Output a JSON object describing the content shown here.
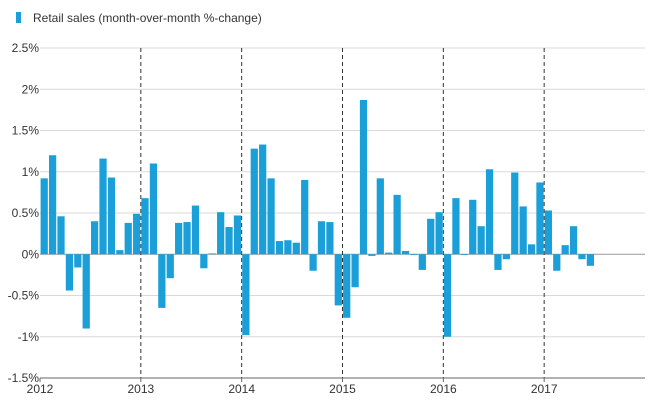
{
  "chart_data": {
    "type": "bar",
    "title": "",
    "xlabel": "",
    "ylabel": "",
    "legend": {
      "label": "Retail sales (month-over-month %-change)",
      "placement": "top-left"
    },
    "series": [
      {
        "name": "Retail sales (month-over-month %-change)",
        "color": "#1a9fd8",
        "start": "2012-01",
        "values": [
          0.92,
          1.2,
          0.46,
          -0.44,
          -0.16,
          -0.9,
          0.4,
          1.16,
          0.93,
          0.05,
          0.38,
          0.49,
          0.68,
          1.1,
          -0.65,
          -0.29,
          0.38,
          0.39,
          0.59,
          -0.17,
          0.01,
          0.51,
          0.33,
          0.47,
          -0.98,
          1.28,
          1.33,
          0.92,
          0.16,
          0.17,
          0.14,
          0.9,
          -0.2,
          0.4,
          0.39,
          -0.62,
          -0.77,
          -0.4,
          1.87,
          -0.02,
          0.92,
          0.02,
          0.72,
          0.04,
          -0.01,
          -0.19,
          0.43,
          0.51,
          -1.0,
          0.68,
          -0.01,
          0.66,
          0.34,
          1.03,
          -0.19,
          -0.06,
          0.99,
          0.58,
          0.12,
          0.87,
          0.53,
          -0.2,
          0.11,
          0.34,
          -0.06,
          -0.14
        ]
      }
    ],
    "x_ticks": [
      "2012",
      "2013",
      "2014",
      "2015",
      "2016",
      "2017"
    ],
    "y_ticks": [
      "-1.5%",
      "-1%",
      "-0.5%",
      "0%",
      "0.5%",
      "1%",
      "1.5%",
      "2%",
      "2.5%"
    ],
    "ylim": [
      -1.5,
      2.5
    ],
    "ytick_step": 0.5,
    "grid": {
      "horizontal": true,
      "vertical": false
    },
    "year_separators": true,
    "colors": {
      "bar": "#1a9fd8",
      "grid": "#d9d9d9",
      "zero_line": "#999999",
      "separator": "#333333"
    }
  }
}
